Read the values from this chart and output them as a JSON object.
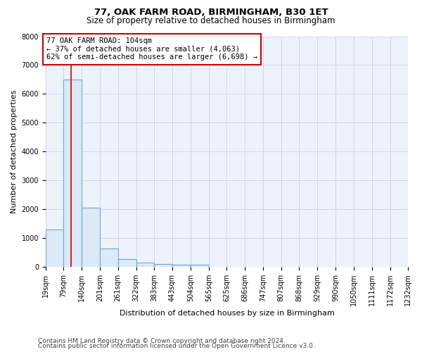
{
  "title": "77, OAK FARM ROAD, BIRMINGHAM, B30 1ET",
  "subtitle": "Size of property relative to detached houses in Birmingham",
  "xlabel": "Distribution of detached houses by size in Birmingham",
  "ylabel": "Number of detached properties",
  "bar_color": "#dce9f7",
  "bar_edge_color": "#6aaad4",
  "grid_color": "#c8d4e8",
  "annotation_box_color": "#cc0000",
  "vline_color": "#cc0000",
  "footer1": "Contains HM Land Registry data © Crown copyright and database right 2024.",
  "footer2": "Contains public sector information licensed under the Open Government Licence v3.0.",
  "annotation_title": "77 OAK FARM ROAD: 104sqm",
  "annotation_line1": "← 37% of detached houses are smaller (4,063)",
  "annotation_line2": "62% of semi-detached houses are larger (6,698) →",
  "property_sqm": 104,
  "bin_edges": [
    19,
    79,
    140,
    201,
    261,
    322,
    383,
    443,
    504,
    565,
    625,
    686,
    747,
    807,
    868,
    929,
    990,
    1050,
    1111,
    1172,
    1232
  ],
  "bin_counts": [
    1300,
    6500,
    2050,
    650,
    280,
    150,
    100,
    80,
    80,
    0,
    0,
    0,
    0,
    0,
    0,
    0,
    0,
    0,
    0,
    0
  ],
  "ylim": [
    0,
    8000
  ],
  "yticks": [
    0,
    1000,
    2000,
    3000,
    4000,
    5000,
    6000,
    7000,
    8000
  ],
  "background_color": "#ffffff",
  "plot_bg_color": "#eef2fa",
  "title_fontsize": 9.5,
  "subtitle_fontsize": 8.5,
  "axis_label_fontsize": 8,
  "tick_fontsize": 7,
  "annotation_fontsize": 7.5,
  "footer_fontsize": 6.5
}
